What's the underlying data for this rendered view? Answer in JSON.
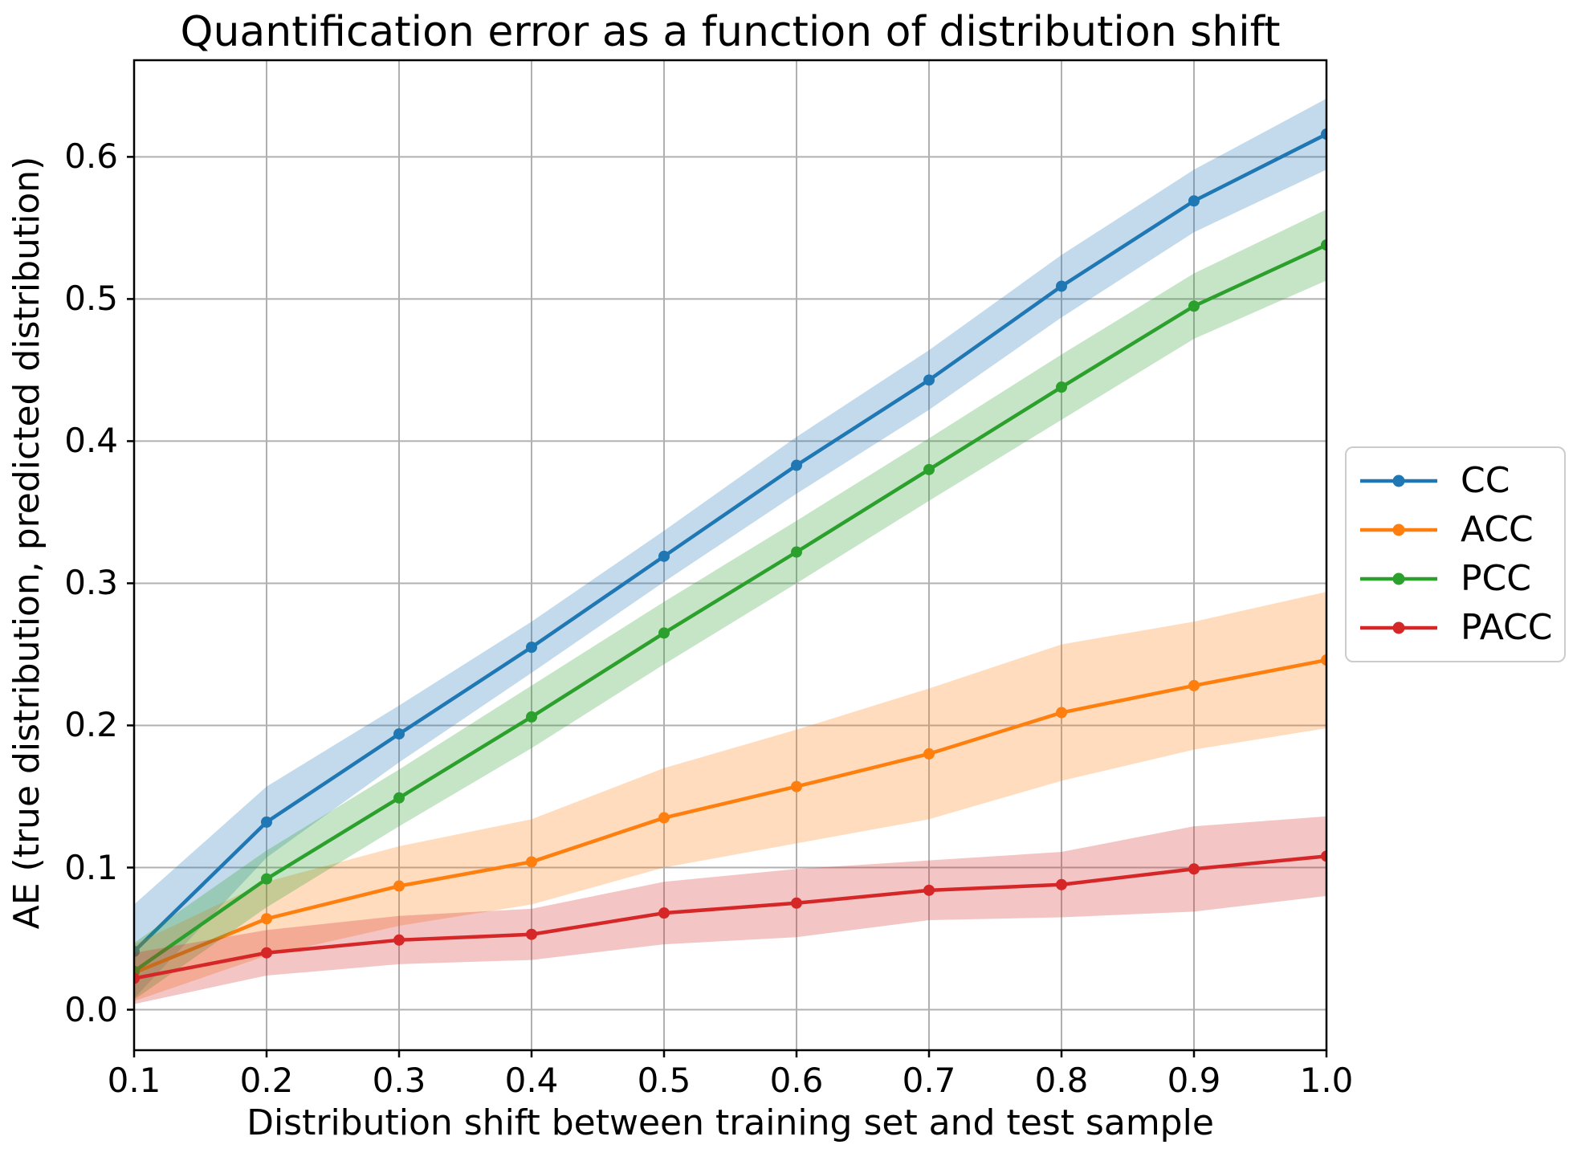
{
  "title": "Quantification error as a function of distribution shift",
  "xlabel": "Distribution shift between training set and test sample",
  "ylabel": "AE (true distribution, predicted distribution)",
  "x_tick_labels": [
    "0.1",
    "0.2",
    "0.3",
    "0.4",
    "0.5",
    "0.6",
    "0.7",
    "0.8",
    "0.9",
    "1.0"
  ],
  "y_tick_labels": [
    "0.0",
    "0.1",
    "0.2",
    "0.3",
    "0.4",
    "0.5",
    "0.6"
  ],
  "legend": {
    "position": "outside-right",
    "items": [
      {
        "label": "CC",
        "color": "#1f77b4"
      },
      {
        "label": "ACC",
        "color": "#ff7f0e"
      },
      {
        "label": "PCC",
        "color": "#2ca02c"
      },
      {
        "label": "PACC",
        "color": "#d62728"
      }
    ]
  },
  "style": {
    "grid_color": "#b0b0b0",
    "spine_color": "#000000",
    "background": "#ffffff",
    "band_opacity": 0.27
  },
  "chart_data": {
    "type": "line",
    "x": [
      0.1,
      0.2,
      0.3,
      0.4,
      0.5,
      0.6,
      0.7,
      0.8,
      0.9,
      1.0
    ],
    "xlim": [
      0.1,
      1.0
    ],
    "ylim": [
      -0.0285,
      0.668
    ],
    "grid": true,
    "x_ticks": [
      0.1,
      0.2,
      0.3,
      0.4,
      0.5,
      0.6,
      0.7,
      0.8,
      0.9,
      1.0
    ],
    "y_ticks": [
      0.0,
      0.1,
      0.2,
      0.3,
      0.4,
      0.5,
      0.6
    ],
    "series": [
      {
        "name": "CC",
        "color": "#1f77b4",
        "values": [
          0.041,
          0.132,
          0.194,
          0.255,
          0.319,
          0.383,
          0.443,
          0.509,
          0.569,
          0.616
        ],
        "band_lower": [
          0.008,
          0.107,
          0.174,
          0.237,
          0.301,
          0.363,
          0.422,
          0.487,
          0.547,
          0.591
        ],
        "band_upper": [
          0.074,
          0.157,
          0.214,
          0.273,
          0.337,
          0.403,
          0.464,
          0.531,
          0.591,
          0.641
        ]
      },
      {
        "name": "ACC",
        "color": "#ff7f0e",
        "values": [
          0.026,
          0.064,
          0.087,
          0.104,
          0.135,
          0.157,
          0.18,
          0.209,
          0.228,
          0.246
        ],
        "band_lower": [
          0.006,
          0.038,
          0.059,
          0.074,
          0.1,
          0.117,
          0.134,
          0.161,
          0.183,
          0.198
        ],
        "band_upper": [
          0.046,
          0.09,
          0.115,
          0.134,
          0.17,
          0.197,
          0.226,
          0.257,
          0.273,
          0.294
        ]
      },
      {
        "name": "PCC",
        "color": "#2ca02c",
        "values": [
          0.027,
          0.092,
          0.149,
          0.206,
          0.265,
          0.322,
          0.38,
          0.438,
          0.495,
          0.538
        ],
        "band_lower": [
          0.007,
          0.072,
          0.129,
          0.184,
          0.243,
          0.3,
          0.358,
          0.415,
          0.472,
          0.513
        ],
        "band_upper": [
          0.047,
          0.112,
          0.169,
          0.228,
          0.287,
          0.344,
          0.402,
          0.461,
          0.518,
          0.563
        ]
      },
      {
        "name": "PACC",
        "color": "#d62728",
        "values": [
          0.022,
          0.04,
          0.049,
          0.053,
          0.068,
          0.075,
          0.084,
          0.088,
          0.099,
          0.108
        ],
        "band_lower": [
          0.004,
          0.024,
          0.032,
          0.035,
          0.046,
          0.051,
          0.063,
          0.065,
          0.069,
          0.08
        ],
        "band_upper": [
          0.04,
          0.056,
          0.066,
          0.071,
          0.09,
          0.099,
          0.105,
          0.111,
          0.129,
          0.136
        ]
      }
    ]
  }
}
